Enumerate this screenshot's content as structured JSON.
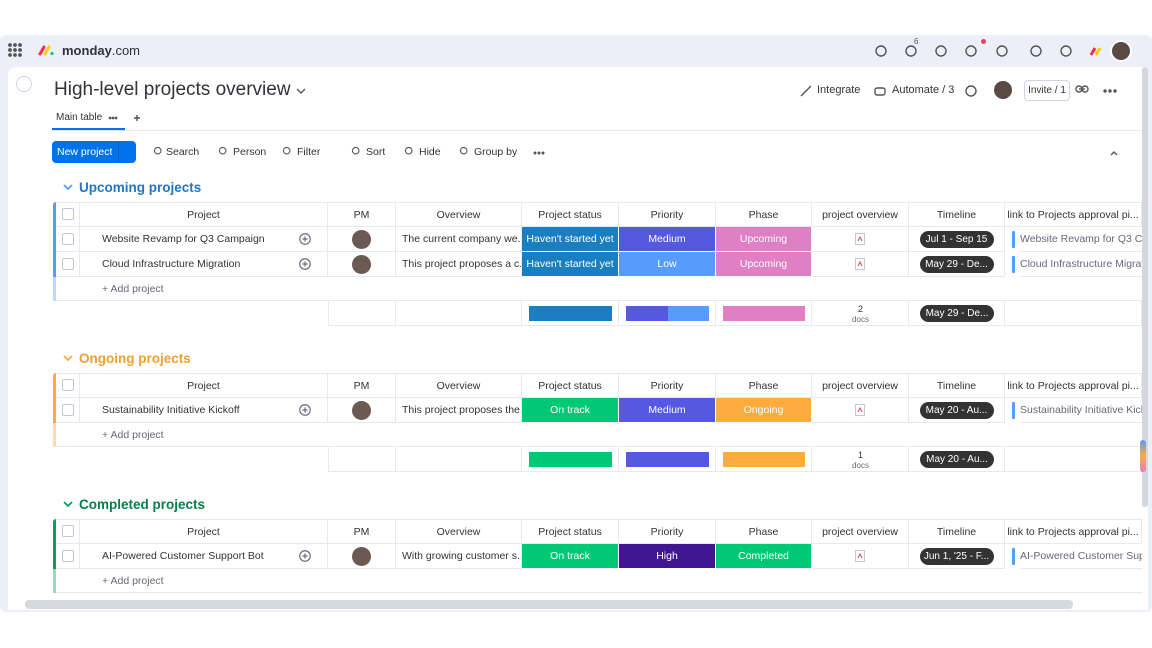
{
  "app": {
    "logo": "monday",
    "logo_suffix": ".com",
    "inbox_badge": "6"
  },
  "header": {
    "title": "High-level projects overview",
    "integrate": "Integrate",
    "automate": "Automate / 3",
    "invite": "Invite / 1"
  },
  "tabs": [
    "Main table"
  ],
  "toolbar": {
    "new": "New project",
    "search": "Search",
    "person": "Person",
    "filter": "Filter",
    "sort": "Sort",
    "hide": "Hide",
    "group_by": "Group by"
  },
  "columns": [
    "Project",
    "PM",
    "Overview",
    "Project status",
    "Priority",
    "Phase",
    "project overview",
    "Timeline",
    "link to Projects approval pi..."
  ],
  "groups": [
    {
      "title": "Upcoming projects",
      "color": "#579bfc",
      "title_color": "#1f76c2",
      "add": "+ Add project",
      "rows": [
        {
          "project": "Website Revamp for Q3 Campaign",
          "overview": "The current company we...",
          "status": {
            "label": "Haven't started yet",
            "color": "#1a7fc0"
          },
          "priority": {
            "label": "Medium",
            "color": "#5559df"
          },
          "phase": {
            "label": "Upcoming",
            "color": "#e07fc3"
          },
          "timeline": "Jul 1 - Sep 15",
          "link": "Website Revamp for Q3 Ca..."
        },
        {
          "project": "Cloud Infrastructure Migration",
          "overview": "This project proposes a c...",
          "status": {
            "label": "Haven't started yet",
            "color": "#1a7fc0"
          },
          "priority": {
            "label": "Low",
            "color": "#579bfc"
          },
          "phase": {
            "label": "Upcoming",
            "color": "#e07fc3"
          },
          "timeline": "May 29 - De...",
          "link": "Cloud Infrastructure Migrati..."
        }
      ],
      "summary": {
        "docs_count": "2",
        "docs": "docs",
        "timeline": "May 29 - De..."
      }
    },
    {
      "title": "Ongoing projects",
      "color": "#fdab3d",
      "title_color": "#f0a030",
      "add": "+ Add project",
      "rows": [
        {
          "project": "Sustainability Initiative Kickoff",
          "overview": "This project proposes the...",
          "status": {
            "label": "On track",
            "color": "#00c875"
          },
          "priority": {
            "label": "Medium",
            "color": "#5559df"
          },
          "phase": {
            "label": "Ongoing",
            "color": "#fdab3d"
          },
          "timeline": "May 20 - Au...",
          "link": "Sustainability Initiative Kickc"
        }
      ],
      "summary": {
        "docs_count": "1",
        "docs": "docs",
        "timeline": "May 20 - Au..."
      }
    },
    {
      "title": "Completed projects",
      "color": "#00a359",
      "title_color": "#037f4c",
      "add": "+ Add project",
      "rows": [
        {
          "project": "AI-Powered Customer Support Bot",
          "overview": "With growing customer s...",
          "status": {
            "label": "On track",
            "color": "#00c875"
          },
          "priority": {
            "label": "High",
            "color": "#401694"
          },
          "phase": {
            "label": "Completed",
            "color": "#00c875"
          },
          "timeline": "Jun 1, '25 - F...",
          "link": "AI-Powered Customer Supp"
        }
      ]
    }
  ]
}
